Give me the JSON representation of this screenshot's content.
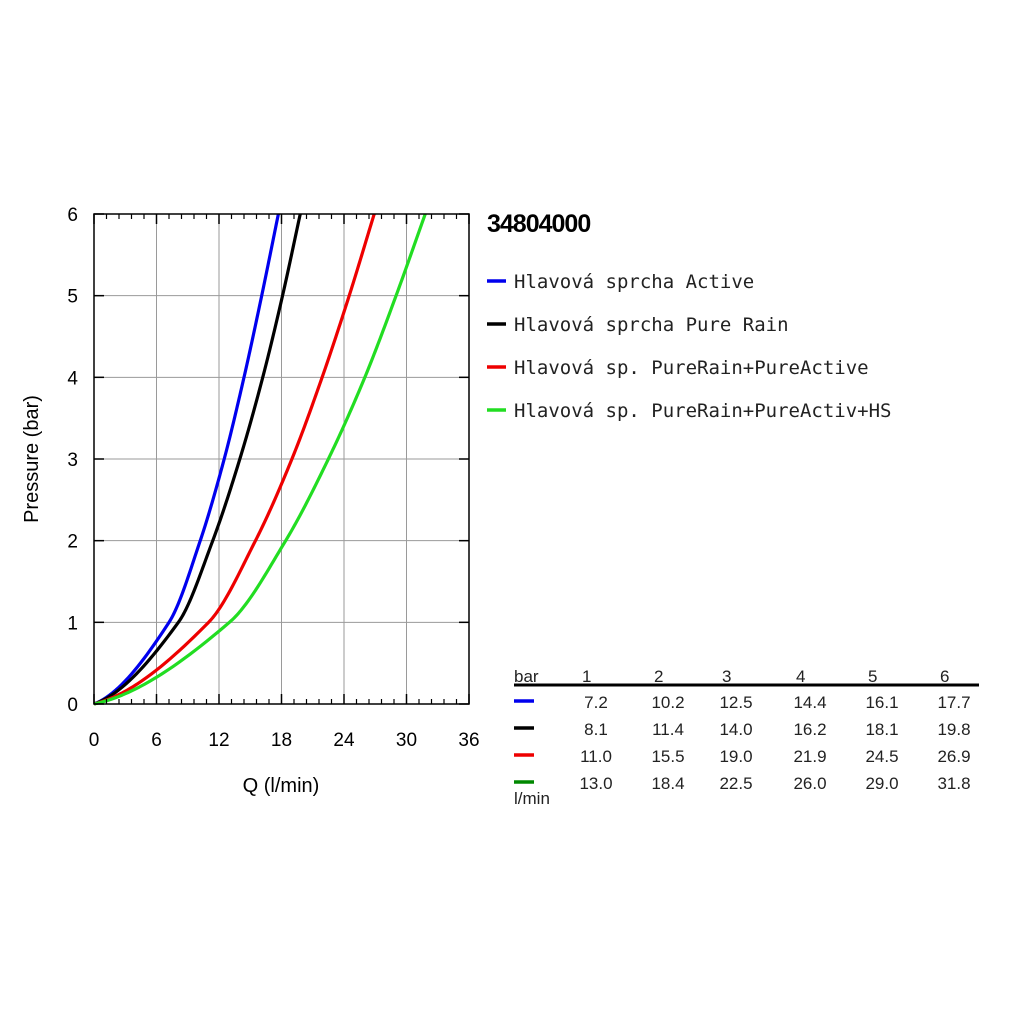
{
  "product_code": "34804000",
  "chart_data": {
    "type": "line",
    "title": "",
    "xlabel": "Q (l/min)",
    "ylabel": "Pressure (bar)",
    "xlim": [
      0,
      36
    ],
    "ylim": [
      0,
      6
    ],
    "x_ticks": [
      "0",
      "6",
      "12",
      "18",
      "24",
      "30",
      "36"
    ],
    "y_ticks": [
      "0",
      "1",
      "2",
      "3",
      "4",
      "5",
      "6"
    ],
    "grid": true,
    "legend_position": "right",
    "pressure_points": [
      0,
      1,
      2,
      3,
      4,
      5,
      6
    ],
    "series": [
      {
        "name": "Hlavová sprcha Active",
        "color": "#0000ee",
        "x": [
          0,
          7.2,
          10.2,
          12.5,
          14.4,
          16.1,
          17.7
        ],
        "y": [
          0,
          1,
          2,
          3,
          4,
          5,
          6
        ]
      },
      {
        "name": "Hlavová sprcha Pure Rain",
        "color": "#000000",
        "x": [
          0,
          8.1,
          11.4,
          14.0,
          16.2,
          18.1,
          19.8
        ],
        "y": [
          0,
          1,
          2,
          3,
          4,
          5,
          6
        ]
      },
      {
        "name": "Hlavová sp. PureRain+PureActive",
        "color": "#ee0000",
        "x": [
          0,
          11.0,
          15.5,
          19.0,
          21.9,
          24.5,
          26.9
        ],
        "y": [
          0,
          1,
          2,
          3,
          4,
          5,
          6
        ]
      },
      {
        "name": "Hlavová sp. PureRain+PureActiv+HS",
        "color": "#22dd22",
        "x": [
          0,
          13.0,
          18.4,
          22.5,
          26.0,
          29.0,
          31.8
        ],
        "y": [
          0,
          1,
          2,
          3,
          4,
          5,
          6
        ]
      }
    ]
  },
  "table": {
    "header_unit": "bar",
    "footer_unit": "l/min",
    "columns": [
      "1",
      "2",
      "3",
      "4",
      "5",
      "6"
    ],
    "row_colors": [
      "#0000ee",
      "#000000",
      "#ee0000",
      "#008800"
    ],
    "rows": [
      [
        "7.2",
        "10.2",
        "12.5",
        "14.4",
        "16.1",
        "17.7"
      ],
      [
        "8.1",
        "11.4",
        "14.0",
        "16.2",
        "18.1",
        "19.8"
      ],
      [
        "11.0",
        "15.5",
        "19.0",
        "21.9",
        "24.5",
        "26.9"
      ],
      [
        "13.0",
        "18.4",
        "22.5",
        "26.0",
        "29.0",
        "31.8"
      ]
    ]
  }
}
